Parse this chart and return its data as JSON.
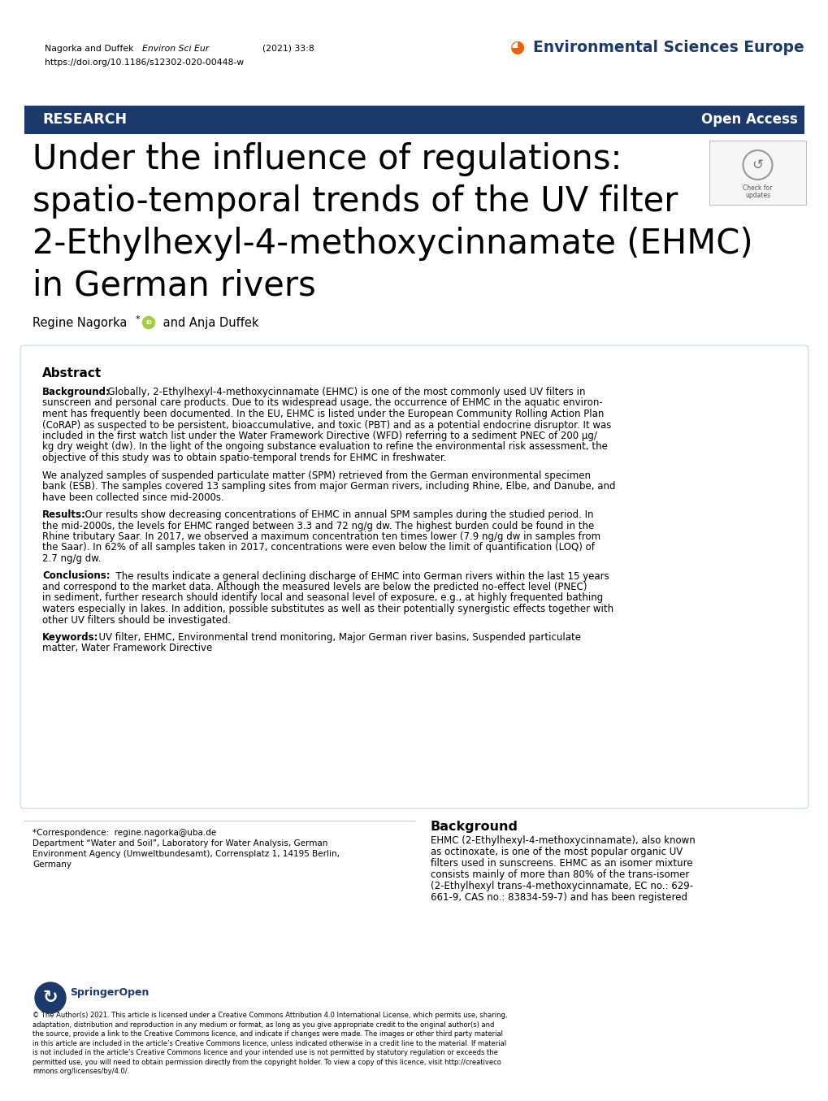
{
  "banner_color": "#1b3a6b",
  "orange_color": "#e8620a",
  "journal_color": "#1b3a6b",
  "abstract_border_color": "#c0d8e8",
  "gray_line_color": "#cccccc",
  "title_lines": [
    "Under the influence of regulations:",
    "spatio-temporal trends of the UV filter",
    "2-Ethylhexyl-4-methoxycinnamate (EHMC)",
    "in German rivers"
  ],
  "header_author": "Nagorka and Duffek",
  "header_journal_italic": "Environ Sci Eur",
  "header_year": "(2021) 33:8",
  "header_doi": "https://doi.org/10.1186/s12302-020-00448-w",
  "journal_display": "Environmental Sciences Europe",
  "banner_left": "RESEARCH",
  "banner_right": "Open Access",
  "author_name": "Regine Nagorka",
  "author_rest": " and Anja Duffek",
  "abstract_heading": "Abstract",
  "bg_label": "Background:",
  "bg_p1": "  Globally, 2-Ethylhexyl-4-methoxycinnamate (EHMC) is one of the most commonly used UV filters in sunscreen and personal care products. Due to its widespread usage, the occurrence of EHMC in the aquatic environ-ment has frequently been documented. In the EU, EHMC is listed under the European Community Rolling Action Plan (CoRAP) as suspected to be persistent, bioaccumulative, and toxic (PBT) and as a potential endocrine disruptor. It was included in the first watch list under the Water Framework Directive (WFD) referring to a sediment PNEC of 200 μg/kg dry weight (dw). In the light of the ongoing substance evaluation to refine the environmental risk assessment, the objective of this study was to obtain spatio-temporal trends for EHMC in freshwater.",
  "bg_p2": "We analyzed samples of suspended particulate matter (SPM) retrieved from the German environmental specimen bank (ESB). The samples covered 13 sampling sites from major German rivers, including Rhine, Elbe, and Danube, and have been collected since mid-2000s.",
  "results_label": "Results:",
  "results_text": "  Our results show decreasing concentrations of EHMC in annual SPM samples during the studied period. In the mid-2000s, the levels for EHMC ranged between 3.3 and 72 ng/g dw. The highest burden could be found in the Rhine tributary Saar. In 2017, we observed a maximum concentration ten times lower (7.9 ng/g dw in samples from the Saar). In 62% of all samples taken in 2017, concentrations were even below the limit of quantification (LOQ) of 2.7 ng/g dw.",
  "conclusions_label": "Conclusions:",
  "conclusions_text": "  The results indicate a general declining discharge of EHMC into German rivers within the last 15 years and correspond to the market data. Although the measured levels are below the predicted no-effect level (PNEC) in sediment, further research should identify local and seasonal level of exposure, e.g., at highly frequented bathing waters especially in lakes. In addition, possible substitutes as well as their potentially synergistic effects together with other UV filters should be investigated.",
  "keywords_label": "Keywords:",
  "keywords_text": "  UV filter, EHMC, Environmental trend monitoring, Major German river basins, Suspended particulate matter, Water Framework Directive",
  "footer_corr": "*Correspondence:  regine.nagorka@uba.de",
  "footer_dept": "Department “Water and Soil”, Laboratory for Water Analysis, German",
  "footer_agency": "Environment Agency (Umweltbundesamt), Corrensplatz 1, 14195 Berlin,",
  "footer_country": "Germany",
  "bg_section_heading": "Background",
  "bg_section_p1": "EHMC (2-Ethylhexyl-4-methoxycinnamate), also known as octinoxate, is one of the most popular organic UV filters used in sunscreens. EHMC as an isomer mixture consists mainly of more than 80% of the trans-isomer (2-Ethylhexyl trans-4-methoxycinnamate, EC no.: 629-661-9, CAS no.: 83834-59-7) and has been registered",
  "copyright_text": "© The Author(s) 2021. This article is licensed under a Creative Commons Attribution 4.0 International License, which permits use, sharing, adaptation, distribution and reproduction in any medium or format, as long as you give appropriate credit to the original author(s) and the source, provide a link to the Creative Commons licence, and indicate if changes were made. The images or other third party material in this article are included in the article’s Creative Commons licence, unless indicated otherwise in a credit line to the material. If material is not included in the article’s Creative Commons licence and your intended use is not permitted by statutory regulation or exceeds the permitted use, you will need to obtain permission directly from the copyright holder. To view a copy of this licence, visit http://creativeco mmons.org/licenses/by/4.0/."
}
